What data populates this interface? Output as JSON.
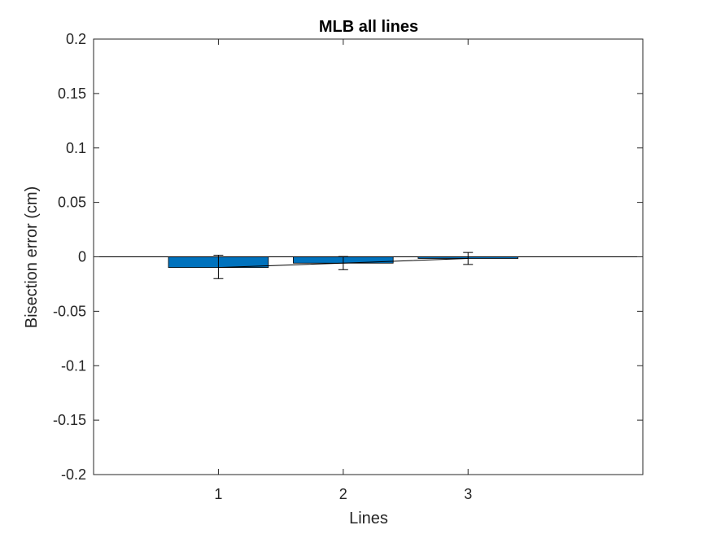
{
  "chart_data": {
    "type": "bar",
    "title": "MLB all lines",
    "xlabel": "Lines",
    "ylabel": "Bisection error (cm)",
    "categories": [
      "1",
      "2",
      "3"
    ],
    "x_domain": [
      0,
      4.4
    ],
    "ylim": [
      -0.2,
      0.2
    ],
    "yticks": [
      0.2,
      0.15,
      0.1,
      0.05,
      0,
      -0.05,
      -0.1,
      -0.15,
      -0.2
    ],
    "ytick_labels": [
      "0.2",
      "0.15",
      "0.1",
      "0.05",
      "0",
      "-0.05",
      "-0.1",
      "-0.15",
      "-0.2"
    ],
    "series": [
      {
        "values": [
          -0.0098,
          -0.0058,
          -0.0015
        ],
        "error_low": [
          -0.02,
          -0.0118,
          -0.007
        ],
        "error_high": [
          0.0015,
          0.0003,
          0.004
        ]
      }
    ],
    "bar_color": "#0072BD",
    "zero_line": true,
    "connect_bar_tops": true,
    "grid": false,
    "box": true
  }
}
